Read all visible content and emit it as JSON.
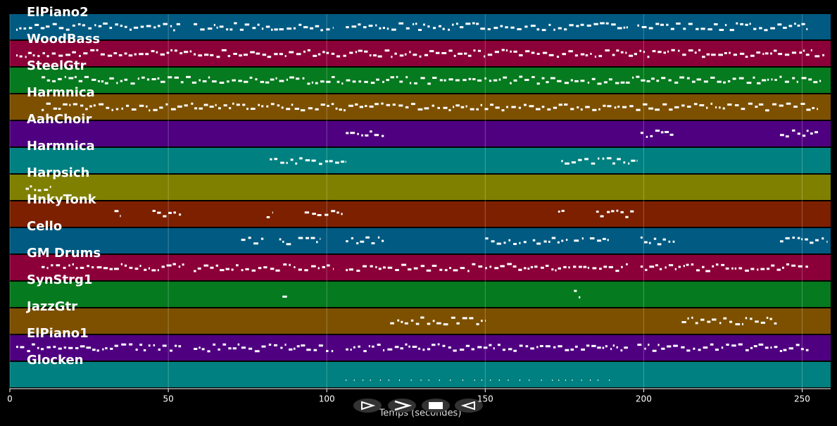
{
  "player": {
    "xlabel": "Temps (secondes)",
    "xlim": [
      0,
      259
    ],
    "xticks": [
      0,
      50,
      100,
      150,
      200,
      250
    ],
    "tracks": [
      {
        "name": "ElPiano2",
        "color": "#005a82",
        "segments": [
          [
            2,
            54
          ],
          [
            58,
            102
          ],
          [
            106,
            195
          ],
          [
            198,
            252
          ]
        ]
      },
      {
        "name": "WoodBass",
        "color": "#8b0038",
        "segments": [
          [
            2,
            257
          ]
        ]
      },
      {
        "name": "SteelGtr",
        "color": "#067a1e",
        "segments": [
          [
            10,
            256
          ]
        ]
      },
      {
        "name": "Harmnica",
        "color": "#7d5000",
        "segments": [
          [
            10,
            255
          ]
        ]
      },
      {
        "name": "AahChoir",
        "color": "#4f0080",
        "segments": [
          [
            106,
            118
          ],
          [
            199,
            210
          ],
          [
            243,
            255
          ]
        ]
      },
      {
        "name": "Harmnica",
        "color": "#008080",
        "segments": [
          [
            82,
            106
          ],
          [
            174,
            198
          ]
        ]
      },
      {
        "name": "Harpsich",
        "color": "#808000",
        "segments": [
          [
            5,
            13
          ]
        ]
      },
      {
        "name": "HnkyTonk",
        "color": "#7d2000",
        "segments": [
          [
            33,
            35
          ],
          [
            45,
            54
          ],
          [
            81,
            83
          ],
          [
            93,
            105
          ],
          [
            173,
            175
          ],
          [
            185,
            197
          ]
        ]
      },
      {
        "name": "Cello",
        "color": "#005a82",
        "segments": [
          [
            73,
            80
          ],
          [
            85,
            89
          ],
          [
            91,
            98
          ],
          [
            106,
            118
          ],
          [
            150,
            163
          ],
          [
            165,
            176
          ],
          [
            178,
            181
          ],
          [
            183,
            189
          ],
          [
            199,
            210
          ],
          [
            243,
            258
          ]
        ]
      },
      {
        "name": "GM Drums",
        "color": "#8b0038",
        "segments": [
          [
            10,
            55
          ],
          [
            58,
            102
          ],
          [
            106,
            195
          ],
          [
            199,
            252
          ]
        ]
      },
      {
        "name": "SynStrg1",
        "color": "#067a1e",
        "segments": [
          [
            86,
            88
          ],
          [
            178,
            180
          ]
        ]
      },
      {
        "name": "JazzGtr",
        "color": "#7d5000",
        "segments": [
          [
            120,
            150
          ],
          [
            212,
            242
          ]
        ]
      },
      {
        "name": "ElPiano1",
        "color": "#4f0080",
        "segments": [
          [
            2,
            54
          ],
          [
            58,
            102
          ],
          [
            106,
            195
          ],
          [
            198,
            252
          ]
        ]
      },
      {
        "name": "Glocken",
        "color": "#008080",
        "segments": [
          [
            106,
            190
          ]
        ]
      }
    ]
  }
}
